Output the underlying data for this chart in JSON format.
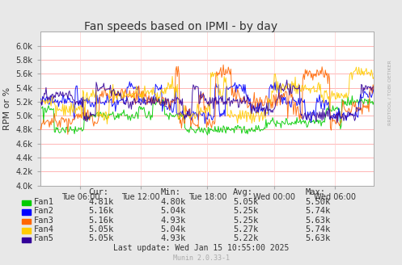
{
  "title": "Fan speeds based on IPMI - by day",
  "ylabel": "RPM or %",
  "ylim": [
    4000,
    6200
  ],
  "yticks": [
    4000,
    4200,
    4400,
    4600,
    4800,
    5000,
    5200,
    5400,
    5600,
    5800,
    6000
  ],
  "ytick_labels": [
    "4.0k",
    "4.2k",
    "4.4k",
    "4.6k",
    "4.8k",
    "5.0k",
    "5.2k",
    "5.4k",
    "5.6k",
    "5.8k",
    "6.0k"
  ],
  "bg_color": "#e8e8e8",
  "plot_bg_color": "#ffffff",
  "grid_color_h": "#ff9999",
  "grid_color_v": "#ffcccc",
  "fans": [
    "Fan1",
    "Fan2",
    "Fan3",
    "Fan4",
    "Fan5"
  ],
  "fan_colors": [
    "#00cc00",
    "#0000ff",
    "#ff6600",
    "#ffcc00",
    "#330099"
  ],
  "x_ticks_labels": [
    "Tue 06:00",
    "Tue 12:00",
    "Tue 18:00",
    "Wed 00:00",
    "Wed 06:00"
  ],
  "table_headers": [
    "Cur:",
    "Min:",
    "Avg:",
    "Max:"
  ],
  "table_data": [
    [
      "4.81k",
      "4.80k",
      "5.05k",
      "5.50k"
    ],
    [
      "5.16k",
      "5.04k",
      "5.25k",
      "5.74k"
    ],
    [
      "5.16k",
      "4.93k",
      "5.25k",
      "5.63k"
    ],
    [
      "5.05k",
      "5.04k",
      "5.27k",
      "5.74k"
    ],
    [
      "5.05k",
      "4.93k",
      "5.22k",
      "5.63k"
    ]
  ],
  "last_update": "Last update: Wed Jan 15 10:55:00 2025",
  "munin_version": "Munin 2.0.33-1",
  "rrdtool_label": "RRDTOOL / TOBI OETIKER",
  "n_points": 400,
  "seed": 42
}
